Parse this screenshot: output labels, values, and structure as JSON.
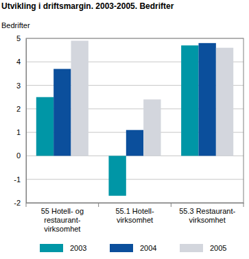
{
  "chart_data": {
    "type": "bar",
    "title": "Utvikling i driftsmargin. 2003-2005. Bedrifter",
    "y_label": "Bedrifter",
    "categories": [
      "55 Hotell- og\nrestaurant-\nvirksomhet",
      "55.1 Hotell-\nvirksomhet",
      "55.3 Restaurant-\nvirksomhet"
    ],
    "series": [
      {
        "name": "2003",
        "color": "#0096a6",
        "values": [
          2.5,
          -1.7,
          4.7
        ]
      },
      {
        "name": "2004",
        "color": "#0b4f9c",
        "values": [
          3.7,
          1.1,
          4.8
        ]
      },
      {
        "name": "2005",
        "color": "#d3d6dd",
        "values": [
          4.9,
          2.4,
          4.6
        ]
      }
    ],
    "ylim": [
      -2,
      5
    ],
    "yticks": [
      -2,
      -1,
      0,
      1,
      2,
      3,
      4,
      5
    ],
    "grid": true,
    "legend": "bottom"
  }
}
